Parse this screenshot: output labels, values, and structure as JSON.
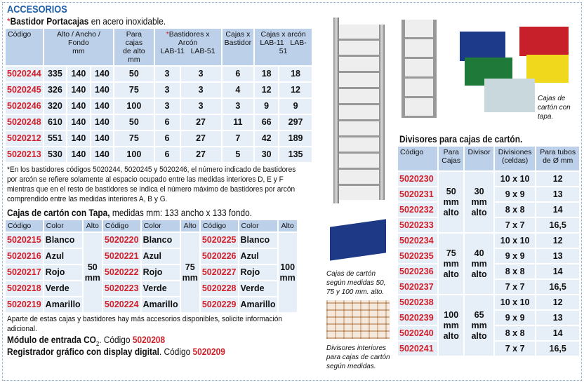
{
  "section_title": "ACCESORIOS",
  "bastidor": {
    "title_star": "*",
    "title_bold": "Bastidor Portacajas",
    "title_rest": " en acero inoxidable.",
    "headers": {
      "codigo": "Código",
      "dims": "Alto / Ancho / Fondo",
      "dims_unit": "mm",
      "para": "Para cajas",
      "para2": "de alto mm",
      "bast_star": "*",
      "bast": "Bastidores x Arcón",
      "lab11": "LAB-11",
      "lab51": "LAB-51",
      "cajas": "Cajas x",
      "cajas2": "Bastidor",
      "cajasarc": "Cajas x arcón"
    },
    "rows": [
      [
        "5020244",
        "335",
        "140",
        "140",
        "50",
        "3",
        "3",
        "6",
        "18",
        "18"
      ],
      [
        "5020245",
        "326",
        "140",
        "140",
        "75",
        "3",
        "3",
        "4",
        "12",
        "12"
      ],
      [
        "5020246",
        "320",
        "140",
        "140",
        "100",
        "3",
        "3",
        "3",
        "9",
        "9"
      ],
      [
        "5020248",
        "610",
        "140",
        "140",
        "50",
        "6",
        "27",
        "11",
        "66",
        "297"
      ],
      [
        "5020212",
        "551",
        "140",
        "140",
        "75",
        "6",
        "27",
        "7",
        "42",
        "189"
      ],
      [
        "5020213",
        "530",
        "140",
        "140",
        "100",
        "6",
        "27",
        "5",
        "30",
        "135"
      ]
    ],
    "note": "*En los bastidores códigos 5020244, 5020245 y 5020246, el número indicado de bastidores por arcón se refiere solamente al espacio ocupado entre las medidas interiores D, E y F mientras que en el resto de bastidores se indica el número máximo de bastidores por arcón comprendido entre las medidas interiores A, B y G."
  },
  "cajas": {
    "title_bold": "Cajas de cartón con Tapa,",
    "title_rest": " medidas mm: 133 ancho x 133 fondo.",
    "headers": {
      "codigo": "Código",
      "color": "Color",
      "alto": "Alto"
    },
    "groups": [
      {
        "alto": "50",
        "unit": "mm",
        "rows": [
          [
            "5020215",
            "Blanco"
          ],
          [
            "5020216",
            "Azul"
          ],
          [
            "5020217",
            "Rojo"
          ],
          [
            "5020218",
            "Verde"
          ],
          [
            "5020219",
            "Amarillo"
          ]
        ]
      },
      {
        "alto": "75",
        "unit": "mm",
        "rows": [
          [
            "5020220",
            "Blanco"
          ],
          [
            "5020221",
            "Azul"
          ],
          [
            "5020222",
            "Rojo"
          ],
          [
            "5020223",
            "Verde"
          ],
          [
            "5020224",
            "Amarillo"
          ]
        ]
      },
      {
        "alto": "100",
        "unit": "mm",
        "rows": [
          [
            "5020225",
            "Blanco"
          ],
          [
            "5020226",
            "Azul"
          ],
          [
            "5020227",
            "Rojo"
          ],
          [
            "5020228",
            "Verde"
          ],
          [
            "5020229",
            "Amarillo"
          ]
        ]
      }
    ]
  },
  "footer": {
    "note": "Aparte de estas cajas y bastidores hay más accesorios disponibles, solicite información adicional.",
    "modulo_bold": "Módulo de entrada CO",
    "modulo_sub": "2",
    "modulo_rest": ". Código ",
    "modulo_code": "5020208",
    "reg_bold": "Registrador gráfico con display digital",
    "reg_rest": ". Código ",
    "reg_code": "5020209"
  },
  "captions": {
    "tapa": "Cajas de cartón con tapa.",
    "medidas": "Cajas de cartón según medidas 50, 75 y 100 mm. alto.",
    "divisores": "Divisores interiores para cajas de cartón según medidas."
  },
  "divisores": {
    "title": "Divisores para cajas de cartón.",
    "headers": {
      "codigo": "Código",
      "para": "Para",
      "para2": "Cajas",
      "divisor": "Divisor",
      "div": "Divisiones",
      "div2": "(celdas)",
      "tubos": "Para tubos",
      "tubos2": "de Ø mm"
    },
    "groups": [
      {
        "para": "50",
        "divisor": "30",
        "unit": "mm",
        "alto": "alto",
        "rows": [
          [
            "5020230",
            "10 x 10",
            "12"
          ],
          [
            "5020231",
            "9 x 9",
            "13"
          ],
          [
            "5020232",
            "8 x 8",
            "14"
          ],
          [
            "5020233",
            "7 x 7",
            "16,5"
          ]
        ]
      },
      {
        "para": "75",
        "divisor": "40",
        "unit": "mm",
        "alto": "alto",
        "rows": [
          [
            "5020234",
            "10 x 10",
            "12"
          ],
          [
            "5020235",
            "9 x 9",
            "13"
          ],
          [
            "5020236",
            "8 x 8",
            "14"
          ],
          [
            "5020237",
            "7 x 7",
            "16,5"
          ]
        ]
      },
      {
        "para": "100",
        "divisor": "65",
        "unit": "mm",
        "alto": "alto",
        "rows": [
          [
            "5020238",
            "10 x 10",
            "12"
          ],
          [
            "5020239",
            "9 x 9",
            "13"
          ],
          [
            "5020240",
            "8 x 8",
            "14"
          ],
          [
            "5020241",
            "7 x 7",
            "16,5"
          ]
        ]
      }
    ]
  },
  "colors": {
    "title_blue": "#1f5fa8",
    "code_red": "#d0202a",
    "header_bg": "#bcd0ea",
    "cell_bg": "#e6eef8"
  }
}
